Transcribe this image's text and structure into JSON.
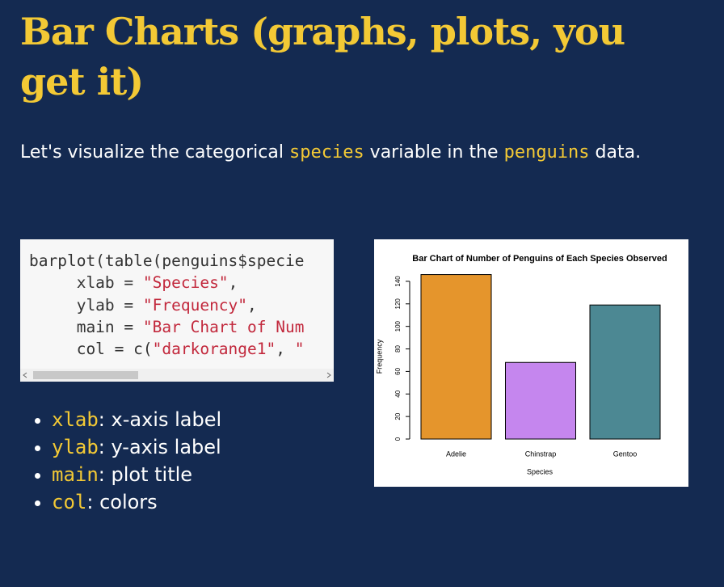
{
  "slide": {
    "title": "Bar Charts (graphs, plots, you get it)",
    "intro": [
      "Let's visualize the categorical ",
      {
        "code": "species"
      },
      " variable in the ",
      {
        "code": "penguins"
      },
      " data."
    ],
    "code": [
      [
        "barplot(table(penguins$specie"
      ],
      [
        "     xlab = ",
        "\"Species\"",
        ","
      ],
      [
        "     ylab = ",
        "\"Frequency\"",
        ","
      ],
      [
        "     main = ",
        "\"Bar Chart of Num"
      ],
      [
        "     col = c(",
        "\"darkorange1\"",
        ", ",
        "\""
      ]
    ],
    "bullets": [
      {
        "code": "xlab",
        "text": ": x-axis label"
      },
      {
        "code": "ylab",
        "text": ": y-axis label"
      },
      {
        "code": "main",
        "text": ": plot title"
      },
      {
        "code": "col",
        "text": ": colors"
      }
    ]
  },
  "chart_data": {
    "type": "bar",
    "title": "Bar Chart of Number of Penguins of Each Species Observed",
    "x_label": "Species",
    "y_label": "Frequency",
    "categories": [
      "Adelie",
      "Chinstrap",
      "Gentoo"
    ],
    "values": [
      146,
      68,
      119
    ],
    "colors": [
      "#e5952c",
      "#c586ee",
      "#4c8893"
    ],
    "ylim": [
      0,
      150
    ],
    "yticks": [
      0,
      20,
      40,
      60,
      80,
      100,
      120,
      140
    ]
  }
}
